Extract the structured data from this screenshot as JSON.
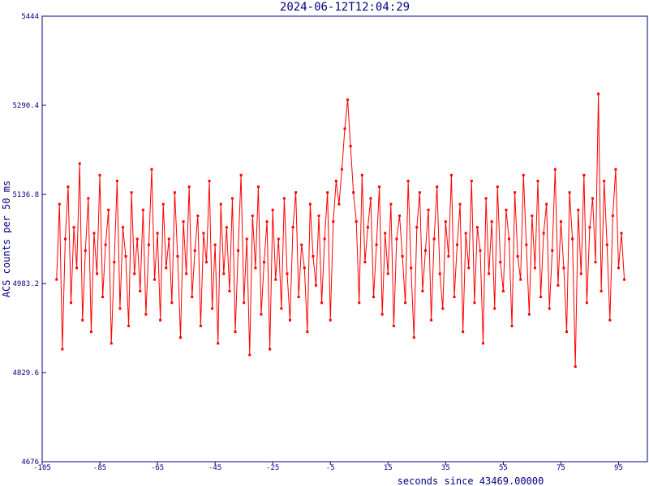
{
  "chart_data": {
    "type": "line",
    "title": "2024-06-12T12:04:29",
    "x_label": "seconds since 43469.00000",
    "y_label": "ACS counts per 50 ms",
    "xlim": [
      -105,
      105
    ],
    "xticks": [
      -105,
      -85,
      -65,
      -45,
      -25,
      -5,
      15,
      35,
      55,
      75,
      95
    ],
    "ylim": [
      4676,
      5444
    ],
    "yticks": [
      4676,
      4829.6,
      4983.2,
      5136.8,
      5290.4,
      5444
    ],
    "series": [
      {
        "color": "#ff0000",
        "x": [
          -100,
          -99,
          -98,
          -97,
          -96,
          -95,
          -94,
          -93,
          -92,
          -91,
          -90,
          -89,
          -88,
          -87,
          -86,
          -85,
          -84,
          -83,
          -82,
          -81,
          -80,
          -79,
          -78,
          -77,
          -76,
          -75,
          -74,
          -73,
          -72,
          -71,
          -70,
          -69,
          -68,
          -67,
          -66,
          -65,
          -64,
          -63,
          -62,
          -61,
          -60,
          -59,
          -58,
          -57,
          -56,
          -55,
          -54,
          -53,
          -52,
          -51,
          -50,
          -49,
          -48,
          -47,
          -46,
          -45,
          -44,
          -43,
          -42,
          -41,
          -40,
          -39,
          -38,
          -37,
          -36,
          -35,
          -34,
          -33,
          -32,
          -31,
          -30,
          -29,
          -28,
          -27,
          -26,
          -25,
          -24,
          -23,
          -22,
          -21,
          -20,
          -19,
          -18,
          -17,
          -16,
          -15,
          -14,
          -13,
          -12,
          -11,
          -10,
          -9,
          -8,
          -7,
          -6,
          -5,
          -4,
          -3,
          -2,
          -1,
          0,
          1,
          2,
          3,
          4,
          5,
          6,
          7,
          8,
          9,
          10,
          11,
          12,
          13,
          14,
          15,
          16,
          17,
          18,
          19,
          20,
          21,
          22,
          23,
          24,
          25,
          26,
          27,
          28,
          29,
          30,
          31,
          32,
          33,
          34,
          35,
          36,
          37,
          38,
          39,
          40,
          41,
          42,
          43,
          44,
          45,
          46,
          47,
          48,
          49,
          50,
          51,
          52,
          53,
          54,
          55,
          56,
          57,
          58,
          59,
          60,
          61,
          62,
          63,
          64,
          65,
          66,
          67,
          68,
          69,
          70,
          71,
          72,
          73,
          74,
          75,
          76,
          77,
          78,
          79,
          80,
          81,
          82,
          83,
          84,
          85,
          86,
          87,
          88,
          89,
          90,
          91,
          92,
          93,
          94,
          95,
          96,
          97
        ],
        "values": [
          4990,
          5120,
          4870,
          5060,
          5150,
          4950,
          5080,
          5010,
          5190,
          4920,
          5040,
          5130,
          4900,
          5070,
          5000,
          5170,
          4960,
          5050,
          5110,
          4880,
          5020,
          5160,
          4940,
          5080,
          5030,
          4910,
          5140,
          5000,
          5060,
          4970,
          5110,
          4930,
          5050,
          5180,
          4990,
          5070,
          4920,
          5120,
          5010,
          5060,
          4950,
          5140,
          5030,
          4890,
          5090,
          5000,
          5150,
          4960,
          5040,
          5100,
          4910,
          5070,
          5020,
          5160,
          4940,
          5050,
          4880,
          5120,
          5000,
          5080,
          4970,
          5130,
          4900,
          5040,
          5170,
          4950,
          5060,
          4860,
          5100,
          5010,
          5150,
          4930,
          5020,
          5090,
          4870,
          5110,
          4990,
          5060,
          4940,
          5130,
          5000,
          4920,
          5080,
          5140,
          4960,
          5050,
          5010,
          4900,
          5120,
          5030,
          4980,
          5100,
          4950,
          5060,
          5140,
          4920,
          5090,
          5160,
          5120,
          5180,
          5250,
          5300,
          5220,
          5140,
          5090,
          4950,
          5170,
          5020,
          5080,
          5130,
          4960,
          5050,
          5150,
          4930,
          5070,
          5000,
          5120,
          4910,
          5060,
          5100,
          5030,
          4950,
          5160,
          5010,
          4890,
          5080,
          5140,
          4970,
          5040,
          5110,
          4920,
          5060,
          5150,
          5000,
          4940,
          5090,
          5030,
          5170,
          4960,
          5050,
          5120,
          4900,
          5070,
          5010,
          5160,
          4950,
          5080,
          5040,
          4880,
          5130,
          5000,
          5090,
          4940,
          5150,
          5020,
          4970,
          5110,
          5060,
          4910,
          5140,
          5030,
          4990,
          5170,
          5050,
          4930,
          5100,
          5010,
          5160,
          4960,
          5070,
          5120,
          4940,
          5040,
          5180,
          4980,
          5090,
          5010,
          4900,
          5140,
          5060,
          4840,
          5110,
          5000,
          5170,
          4950,
          5080,
          5130,
          5020,
          5310,
          4970,
          5160,
          5050,
          4920,
          5100,
          5180,
          5010,
          5070,
          4990
        ]
      }
    ]
  }
}
